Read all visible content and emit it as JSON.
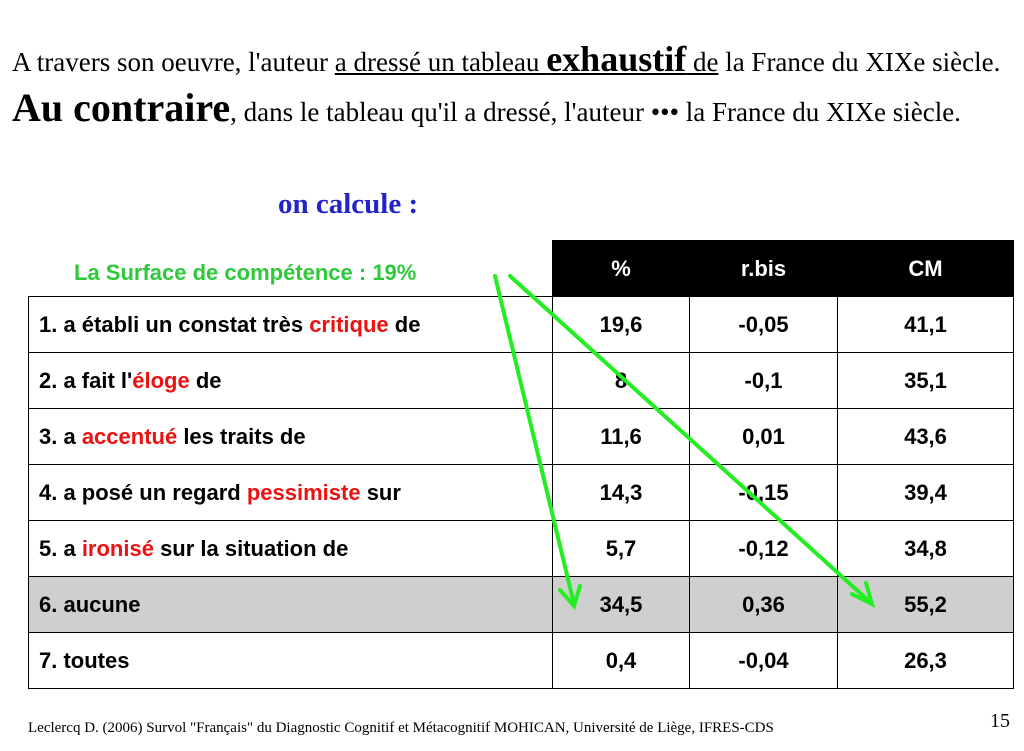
{
  "intro": {
    "line1_a": "A travers son oeuvre, l'auteur ",
    "line1_u1": "a dressé un tableau ",
    "line1_big": "exhaustif",
    "line1_u2": " de",
    "line1_b": " la France du XIXe siècle.",
    "line2_big": "Au contraire",
    "line2_rest": ", dans le tableau qu'il a dressé, l'auteur ••• la France du XIXe siècle."
  },
  "calc_label": "on calcule :",
  "surface_label": "La Surface de compétence : 19%",
  "table": {
    "headers": [
      "%",
      "r.bis",
      "CM"
    ],
    "rows": [
      {
        "pre": "1. a établi un constat très ",
        "key": "critique",
        "post": " de",
        "pct": "19,6",
        "rbis": "-0,05",
        "cm": "41,1"
      },
      {
        "pre": "2. a fait l'",
        "key": "éloge",
        "post": " de",
        "pct": "8",
        "rbis": "-0,1",
        "cm": "35,1"
      },
      {
        "pre": "3. a ",
        "key": "accentué",
        "post": " les traits de",
        "pct": "11,6",
        "rbis": "0,01",
        "cm": "43,6"
      },
      {
        "pre": "4. a posé un regard ",
        "key": "pessimiste",
        "post": " sur",
        "pct": "14,3",
        "rbis": "-0,15",
        "cm": "39,4"
      },
      {
        "pre": "5. a ",
        "key": "ironisé",
        "post": " sur la situation de",
        "pct": "5,7",
        "rbis": "-0,12",
        "cm": "34,8"
      },
      {
        "pre": "6. aucune",
        "key": "",
        "post": "",
        "pct": "34,5",
        "rbis": "0,36",
        "cm": "55,2"
      },
      {
        "pre": "7. toutes",
        "key": "",
        "post": "",
        "pct": "0,4",
        "rbis": "-0,04",
        "cm": "26,3"
      }
    ]
  },
  "colors": {
    "arrow": "#22ee22",
    "keyword": "#ee1111",
    "calc": "#2323c8",
    "surface": "#2ec93a",
    "highlight_row": "#cfcfcf"
  },
  "footer": "Leclercq D. (2006) Survol \"Français\" du Diagnostic Cognitif et Métacognitif MOHICAN,  Université de Liège, IFRES-CDS",
  "page_number": "15"
}
